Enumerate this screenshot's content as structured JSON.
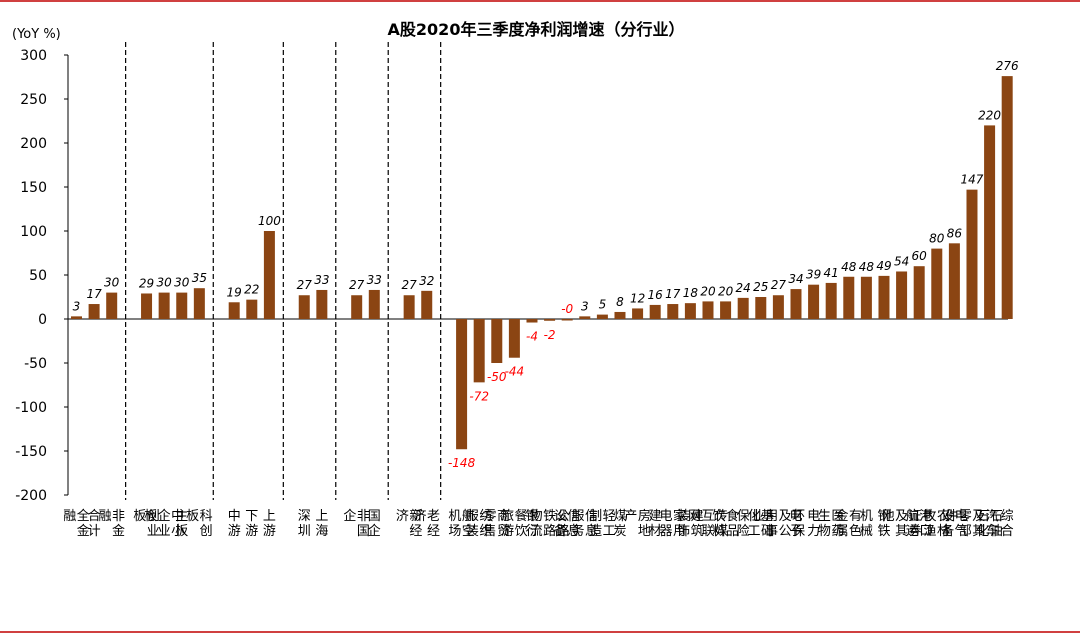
{
  "chart_data": {
    "type": "bar",
    "title": "A股2020年三季度净利润增速（分行业）",
    "ylabel": "(YoY %)",
    "ylim": [
      -200,
      300
    ],
    "yticks": [
      300,
      250,
      200,
      150,
      100,
      50,
      0,
      -50,
      -100,
      -150,
      -200
    ],
    "grid": false,
    "legend": "none",
    "colors": {
      "bar": "#8B4513",
      "positive_label": "#000000",
      "negative_label": "#ff0000",
      "frame": "#c00000"
    },
    "groups": [
      {
        "categories": [
          "全金融",
          "合计",
          "非金融"
        ],
        "values": [
          3,
          17,
          30
        ]
      },
      {
        "categories": [
          "创业板",
          "中小企业板",
          "主板",
          "科创板"
        ],
        "values": [
          29,
          30,
          30,
          35
        ]
      },
      {
        "categories": [
          "中游",
          "下游",
          "上游"
        ],
        "values": [
          19,
          22,
          100
        ]
      },
      {
        "categories": [
          "深圳",
          "上海"
        ],
        "values": [
          27,
          33
        ]
      },
      {
        "categories": [
          "非国企",
          "国企"
        ],
        "values": [
          27,
          33
        ]
      },
      {
        "categories": [
          "新经济",
          "老经济"
        ],
        "values": [
          27,
          32
        ]
      },
      {
        "categories": [
          "航空机场",
          "纺织服装",
          "商贸零售",
          "餐饮旅游",
          "银行",
          "公路铁路物流",
          "信息设备",
          "信息服务",
          "轻工制造",
          "煤炭",
          "房地产",
          "建材",
          "家用电器",
          "建筑装饰",
          "传媒互联网",
          "食品饮料",
          "保险",
          "基础化工",
          "环保及公用事业",
          "电子",
          "电力",
          "医药生物",
          "有色金属",
          "机械",
          "钢铁",
          "证券及其他",
          "港口航运",
          "农林牧渔",
          "电气设备",
          "汽车及其零部件",
          "石油石化",
          "综合"
        ],
        "values": [
          -148,
          -72,
          -50,
          -44,
          -4,
          -2,
          0,
          3,
          5,
          8,
          12,
          16,
          17,
          18,
          20,
          20,
          24,
          25,
          27,
          34,
          39,
          41,
          48,
          48,
          49,
          54,
          60,
          80,
          86,
          147,
          220,
          276
        ]
      }
    ]
  }
}
